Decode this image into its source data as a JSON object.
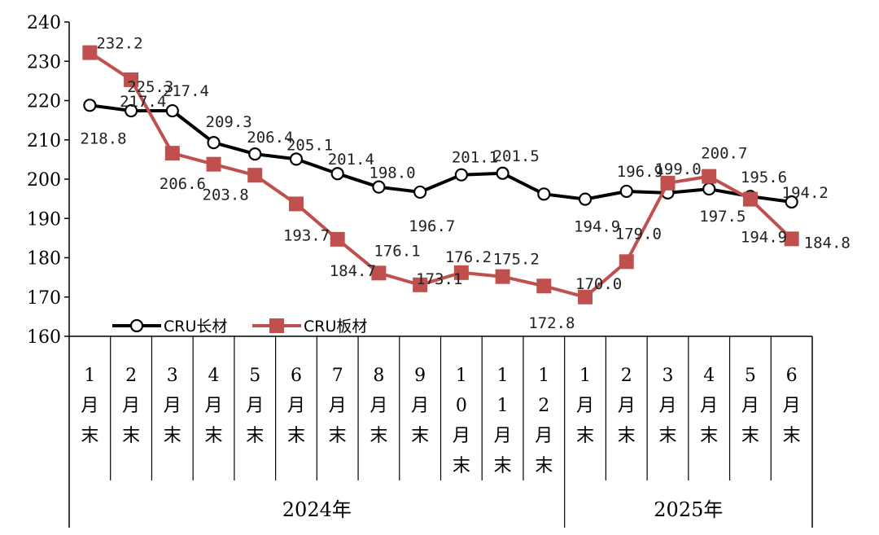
{
  "chart_data": {
    "type": "line",
    "title": "",
    "xlabel": "",
    "ylabel": "",
    "ylim": [
      160,
      240
    ],
    "yticks": [
      160,
      170,
      180,
      190,
      200,
      210,
      220,
      230,
      240
    ],
    "categories": [
      "1月末",
      "2月末",
      "3月末",
      "4月末",
      "5月末",
      "6月末",
      "7月末",
      "8月末",
      "9月末",
      "10月末",
      "11月末",
      "12月末",
      "1月末",
      "2月末",
      "3月末",
      "4月末",
      "5月末",
      "6月末"
    ],
    "year_groups": [
      {
        "label": "2024年",
        "count": 12
      },
      {
        "label": "2025年",
        "count": 6
      }
    ],
    "series": [
      {
        "name": "CRU长材",
        "color": "#000000",
        "marker": "circle",
        "values": [
          218.8,
          217.4,
          217.4,
          209.3,
          206.4,
          205.1,
          201.4,
          198.0,
          196.7,
          201.1,
          201.5,
          196.2,
          194.9,
          196.9,
          196.5,
          197.5,
          195.6,
          194.2
        ],
        "labels": [
          "218.8",
          "217.4",
          "217.4",
          "209.3",
          "206.4",
          "205.1",
          "201.4",
          "198.0",
          "196.7",
          "201.1",
          "201.5",
          "",
          "194.9",
          "196.9",
          "",
          "197.5",
          "195.6",
          "194.2"
        ]
      },
      {
        "name": "CRU板材",
        "color": "#c0504d",
        "marker": "square",
        "values": [
          232.2,
          225.3,
          206.6,
          203.8,
          201.0,
          193.7,
          184.7,
          176.1,
          173.1,
          176.2,
          175.2,
          172.8,
          170.0,
          179.0,
          199.0,
          200.7,
          194.9,
          184.8
        ],
        "labels": [
          "232.2",
          "225.3",
          "206.6",
          "203.8",
          "",
          "193.7",
          "184.7",
          "176.1",
          "173.1",
          "176.2",
          "175.2",
          "172.8",
          "170.0",
          "179.0",
          "199.0",
          "200.7",
          "194.9",
          "184.8"
        ]
      }
    ],
    "legend": "bottom-left"
  }
}
